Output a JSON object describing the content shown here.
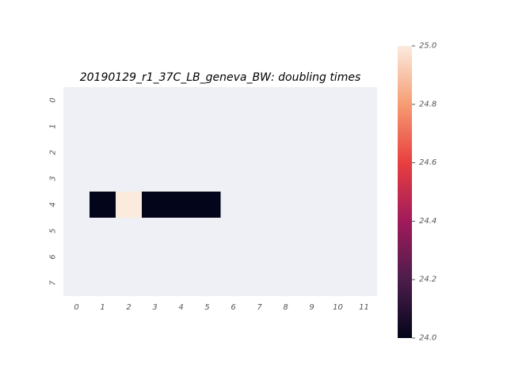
{
  "chart_data": {
    "type": "heatmap",
    "title": "20190129_r1_37C_LB_geneva_BW: doubling times",
    "xlabel": "",
    "ylabel": "",
    "x_ticks": [
      "0",
      "1",
      "2",
      "3",
      "4",
      "5",
      "6",
      "7",
      "8",
      "9",
      "10",
      "11"
    ],
    "y_ticks": [
      "0",
      "1",
      "2",
      "3",
      "4",
      "5",
      "6",
      "7"
    ],
    "rows": 8,
    "cols": 12,
    "cells": [
      {
        "row": 4,
        "col": 1,
        "value": 24.0
      },
      {
        "row": 4,
        "col": 2,
        "value": 25.0
      },
      {
        "row": 4,
        "col": 3,
        "value": 24.0
      },
      {
        "row": 4,
        "col": 4,
        "value": 24.0
      },
      {
        "row": 4,
        "col": 5,
        "value": 24.0
      }
    ],
    "missing_color": "#eff0f5",
    "colorbar": {
      "vmin": 24.0,
      "vmax": 25.0,
      "ticks": [
        "24.0",
        "24.2",
        "24.4",
        "24.6",
        "24.8",
        "25.0"
      ],
      "tick_values": [
        24.0,
        24.2,
        24.4,
        24.6,
        24.8,
        25.0
      ],
      "colormap": "rocket",
      "colormap_stops": [
        "#03051a",
        "#4c1d4b",
        "#a11a5b",
        "#e83f3f",
        "#f69c73",
        "#faebdd"
      ]
    },
    "grid": false,
    "legend": "colorbar-right"
  }
}
